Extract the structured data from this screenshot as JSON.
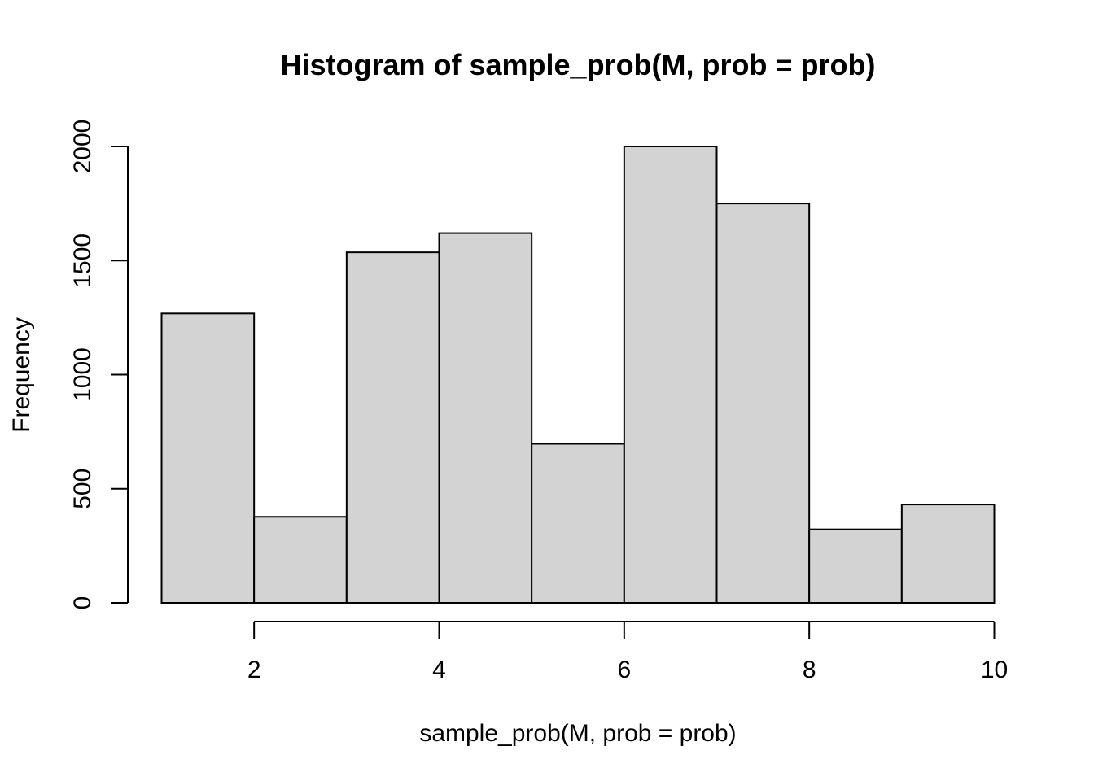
{
  "chart_data": {
    "type": "bar",
    "title": "Histogram of sample_prob(M, prob = prob)",
    "xlabel": "sample_prob(M, prob = prob)",
    "ylabel": "Frequency",
    "bins": [
      {
        "x0": 1,
        "x1": 2,
        "count": 1268
      },
      {
        "x0": 2,
        "x1": 3,
        "count": 377
      },
      {
        "x0": 3,
        "x1": 4,
        "count": 1536
      },
      {
        "x0": 4,
        "x1": 5,
        "count": 1620
      },
      {
        "x0": 5,
        "x1": 6,
        "count": 697
      },
      {
        "x0": 6,
        "x1": 7,
        "count": 2000
      },
      {
        "x0": 7,
        "x1": 8,
        "count": 1750
      },
      {
        "x0": 8,
        "x1": 9,
        "count": 322
      },
      {
        "x0": 9,
        "x1": 10,
        "count": 431
      }
    ],
    "xticks": [
      2,
      4,
      6,
      8,
      10
    ],
    "yticks": [
      0,
      500,
      1000,
      1500,
      2000
    ],
    "xlim": [
      1,
      10
    ],
    "ylim": [
      0,
      2000
    ],
    "grid": false,
    "colors": {
      "bar_fill": "#d3d3d3",
      "bar_stroke": "#000000"
    }
  }
}
